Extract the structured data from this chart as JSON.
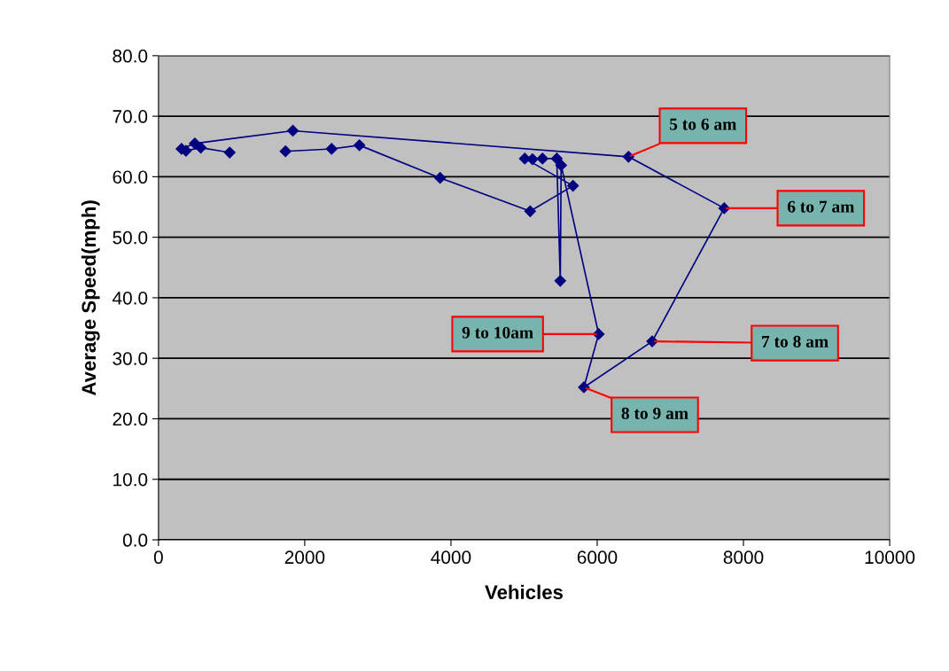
{
  "chart_data": {
    "type": "line",
    "xlabel": "Vehicles",
    "ylabel": "Average Speed(mph)",
    "series": [
      {
        "color": "#000080",
        "x": [
          974,
          578,
          376,
          315,
          497,
          1838,
          6428,
          7737,
          6752,
          5818,
          6020,
          5507,
          5495,
          5447,
          5252,
          5115,
          5010,
          5669,
          5083,
          3851,
          2748,
          2368,
          1737
        ],
        "values": [
          64.0,
          64.8,
          64.3,
          64.6,
          65.5,
          67.6,
          63.3,
          54.8,
          32.8,
          25.2,
          34.0,
          61.9,
          42.8,
          63.0,
          63.0,
          62.9,
          63.0,
          58.5,
          54.3,
          59.8,
          65.2,
          64.6,
          64.2
        ]
      }
    ],
    "xlim": [
      0,
      10000
    ],
    "xticks": [
      0,
      2000,
      4000,
      6000,
      8000,
      10000
    ],
    "ylim": [
      0,
      80
    ],
    "yticks": [
      {
        "value": 0,
        "label": "0.0"
      },
      {
        "value": 10,
        "label": "10.0"
      },
      {
        "value": 20,
        "label": "20.0"
      },
      {
        "value": 30,
        "label": "30.0"
      },
      {
        "value": 40,
        "label": "40.0"
      },
      {
        "value": 50,
        "label": "50.0"
      },
      {
        "value": 60,
        "label": "60.0"
      },
      {
        "value": 70,
        "label": "70.0"
      },
      {
        "value": 80,
        "label": "80.0"
      }
    ],
    "grid": "y",
    "marker": "diamond",
    "line_style": "solid",
    "legend": false,
    "annotations": [
      {
        "text": "5 to 6 am",
        "x": 6428,
        "y": 63.3
      },
      {
        "text": "6 to 7 am",
        "x": 7737,
        "y": 54.8
      },
      {
        "text": "7 to 8 am",
        "x": 6752,
        "y": 32.8
      },
      {
        "text": "8 to 9 am",
        "x": 5818,
        "y": 25.2
      },
      {
        "text": "9 to 10am",
        "x": 6020,
        "y": 34.0
      }
    ]
  }
}
